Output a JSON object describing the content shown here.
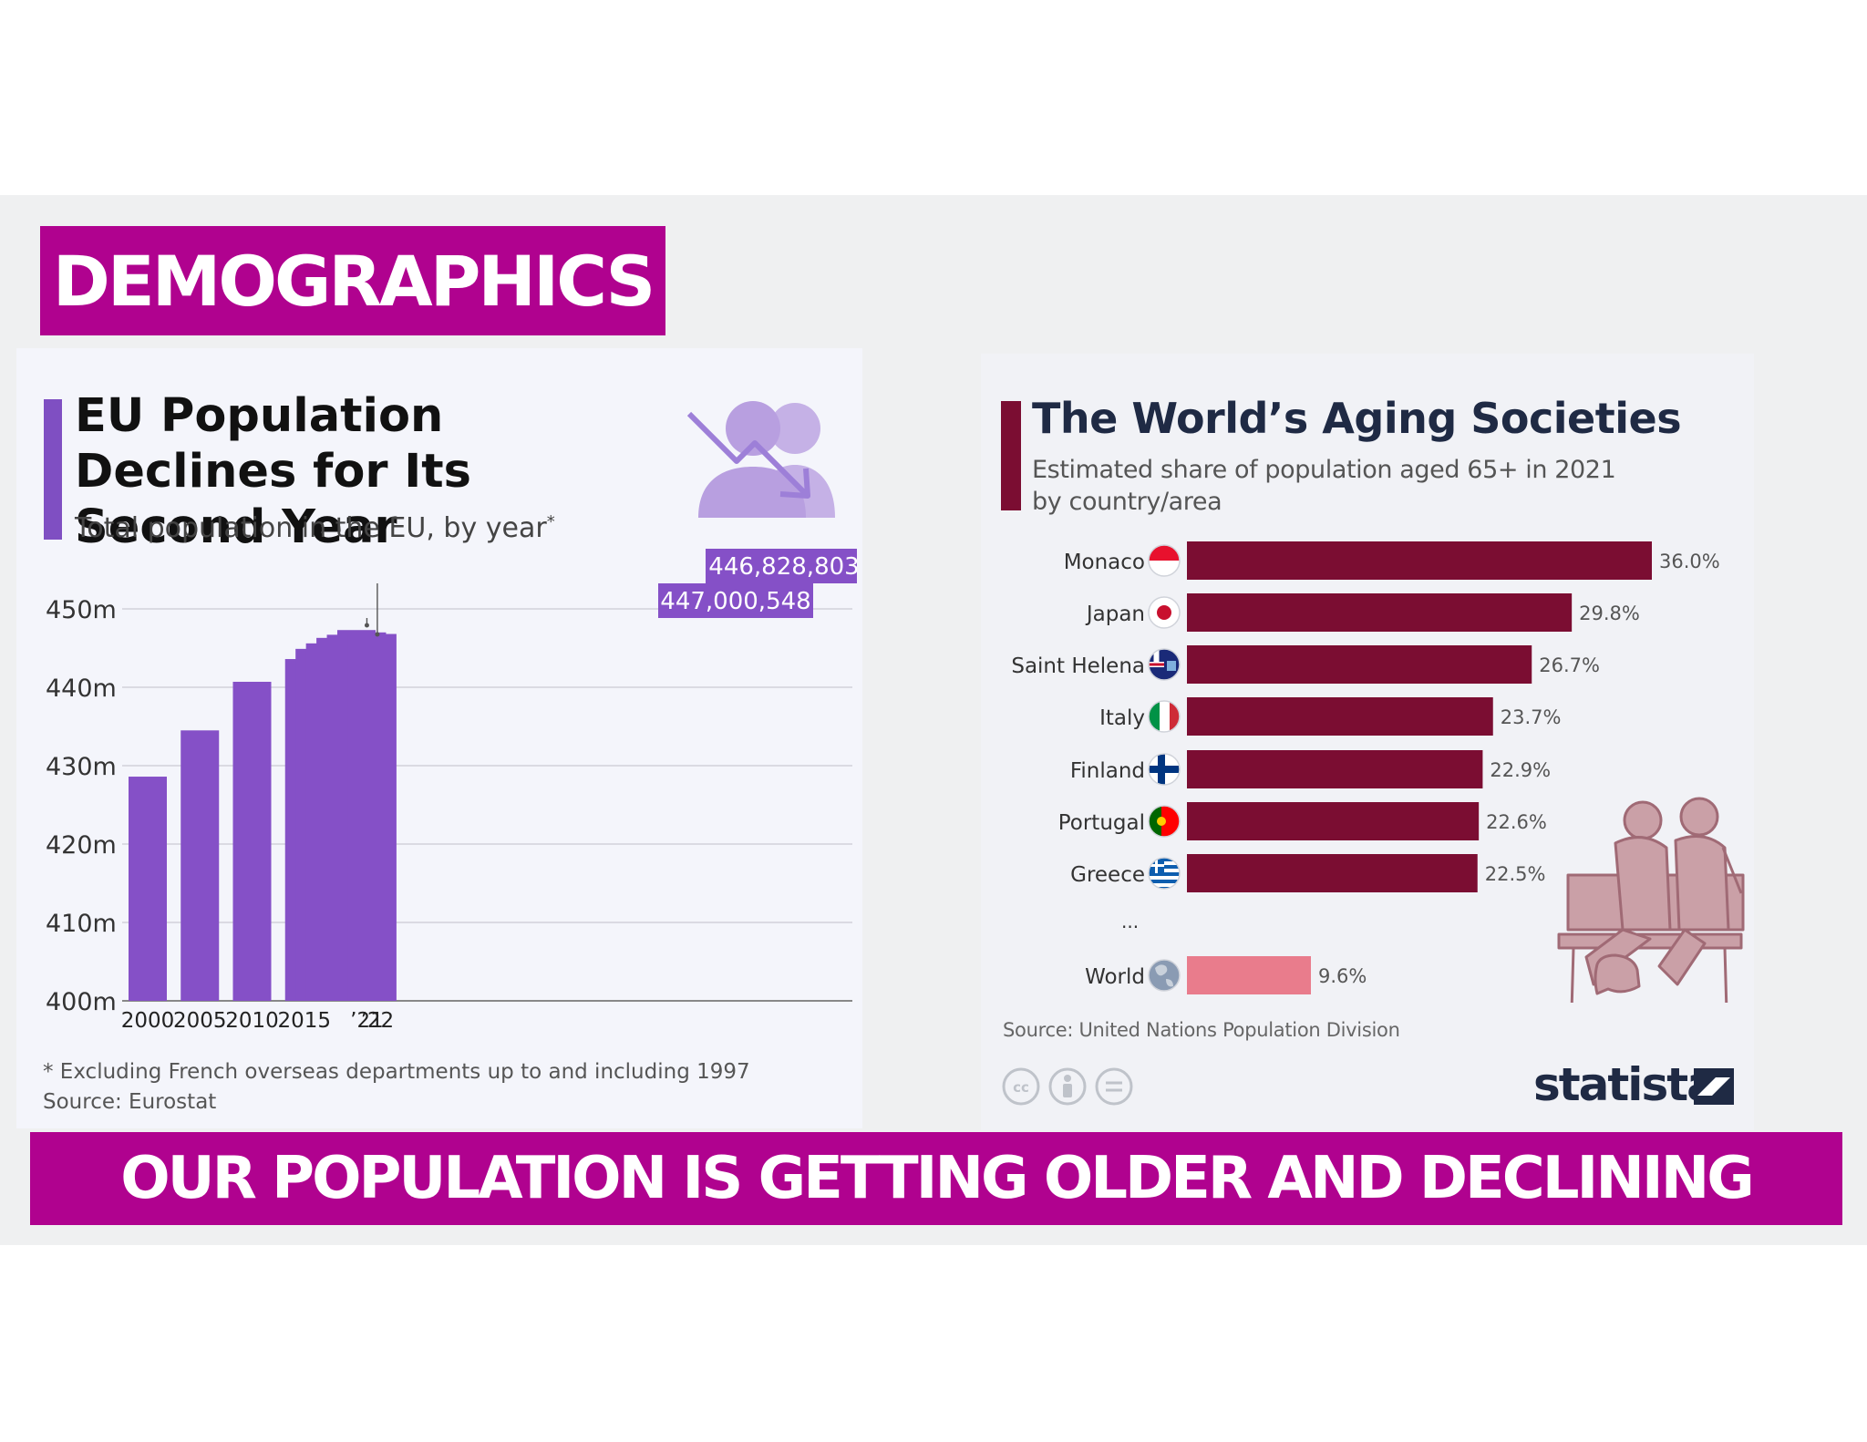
{
  "banner_top": "DEMOGRAPHICS",
  "banner_bottom": "OUR POPULATION IS GETTING OLDER AND DECLINING",
  "colors": {
    "banner": "#b0028f",
    "eu_bar": "#8550c7",
    "aging_bar": "#7b0d32",
    "world_bar": "#e97c8c"
  },
  "chart_data": [
    {
      "type": "bar",
      "title": "EU Population Declines for Its Second Year",
      "subtitle": "Total population in the EU, by year",
      "subtitle_marker": "*",
      "unit": "m",
      "ylim": [
        400,
        450
      ],
      "yticks": [
        450,
        440,
        430,
        420,
        410,
        400
      ],
      "ytick_labels": [
        "450m",
        "440m",
        "430m",
        "420m",
        "410m",
        "400m"
      ],
      "categories": [
        "2000",
        "2005",
        "2010",
        "2015",
        "2016",
        "2017",
        "2018",
        "2019",
        "2020",
        "2021",
        "2022"
      ],
      "tick_labels": [
        "2000",
        "2005",
        "2010",
        "2015",
        "",
        "",
        "",
        "",
        "",
        "’21",
        "’22"
      ],
      "values": [
        428.6,
        434.5,
        440.7,
        443.6,
        444.9,
        445.6,
        446.3,
        446.7,
        447.3,
        447.0,
        446.8
      ],
      "callouts": [
        {
          "category": "2021",
          "label": "447,000,548"
        },
        {
          "category": "2022",
          "label": "446,828,803"
        }
      ],
      "grid": true,
      "footnote": "* Excluding French overseas departments up to and including 1997",
      "source": "Source: Eurostat"
    },
    {
      "type": "bar",
      "orientation": "horizontal",
      "title": "The World’s Aging Societies",
      "subtitle": "Estimated share of population aged 65+ in 2021 by country/area",
      "categories": [
        "Monaco",
        "Japan",
        "Saint Helena",
        "Italy",
        "Finland",
        "Portugal",
        "Greece",
        "World"
      ],
      "values": [
        36.0,
        29.8,
        26.7,
        23.7,
        22.9,
        22.6,
        22.5,
        9.6
      ],
      "value_labels": [
        "36.0%",
        "29.8%",
        "26.7%",
        "23.7%",
        "22.9%",
        "22.6%",
        "22.5%",
        "9.6%"
      ],
      "flag_icons": [
        "monaco-flag-icon",
        "japan-flag-icon",
        "saint-helena-flag-icon",
        "italy-flag-icon",
        "finland-flag-icon",
        "portugal-flag-icon",
        "greece-flag-icon",
        "globe-icon"
      ],
      "ellipsis": "...",
      "source": "Source: United Nations Population Division"
    }
  ],
  "brand": "statista"
}
